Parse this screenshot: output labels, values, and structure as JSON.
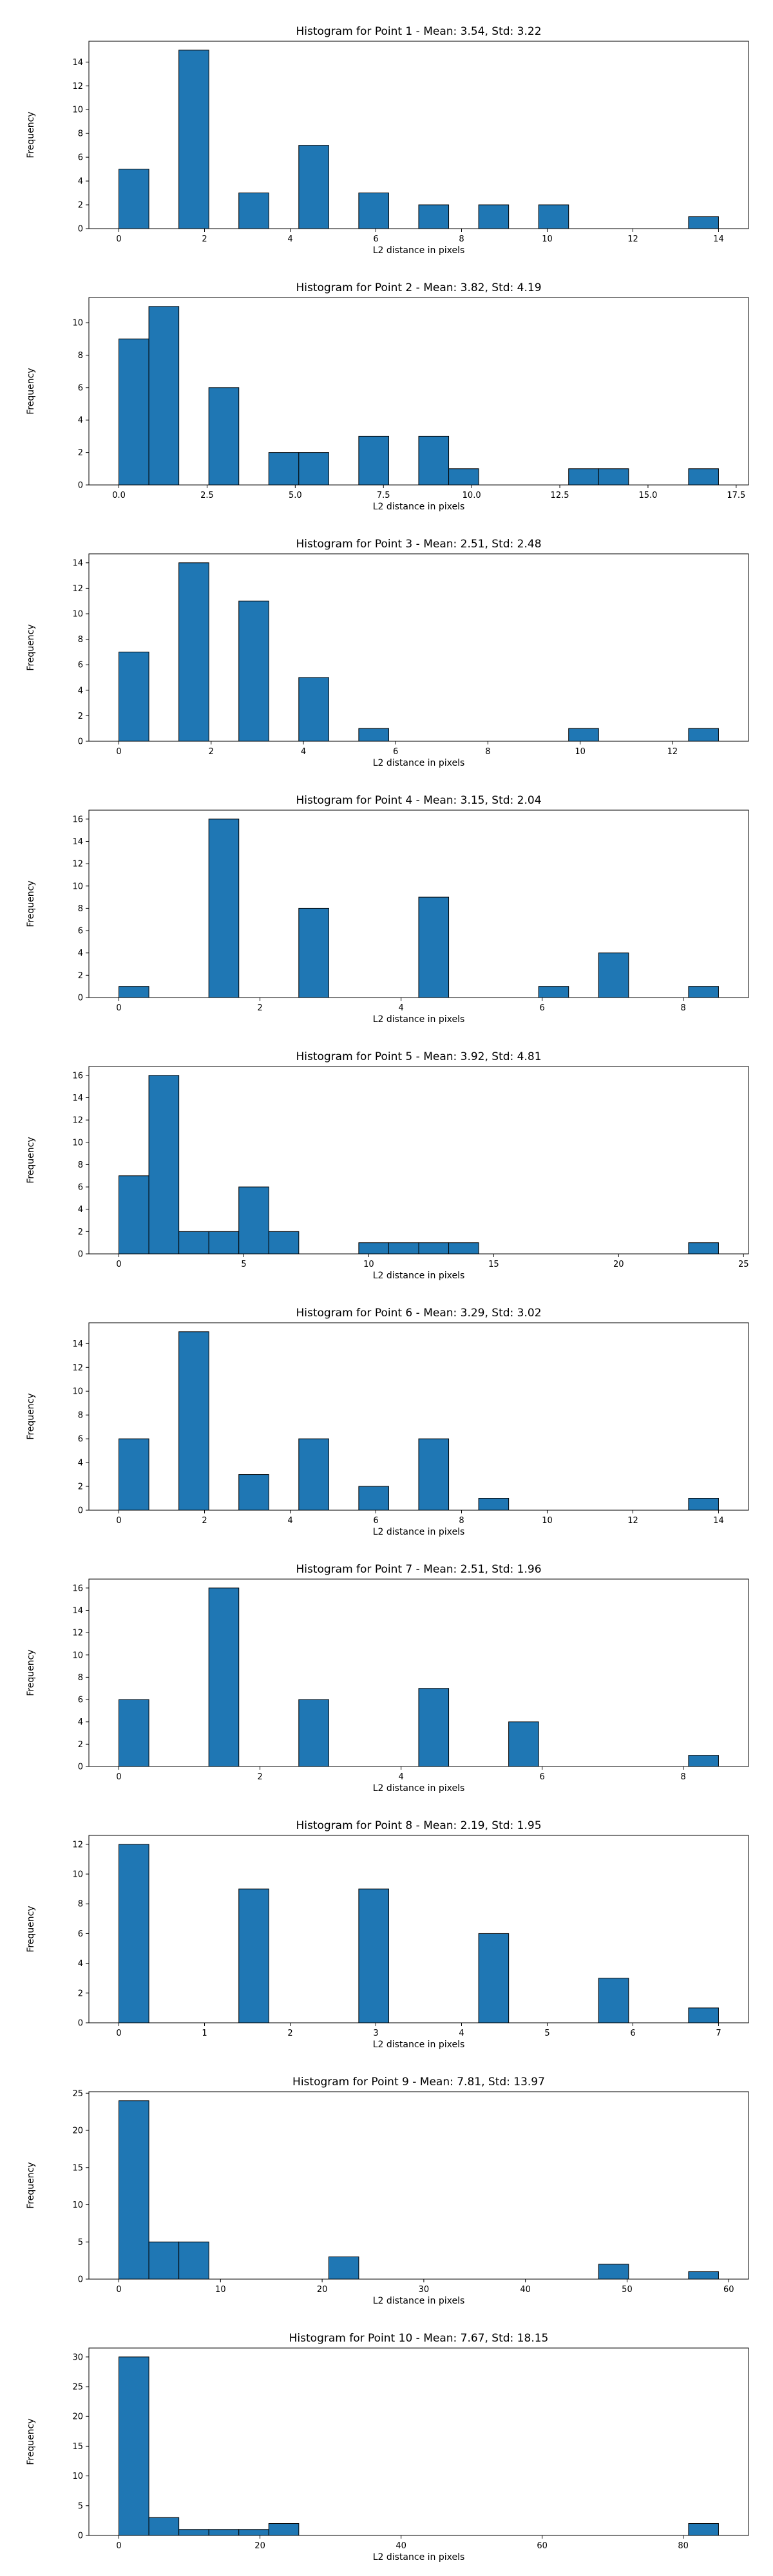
{
  "chart_data": [
    {
      "type": "bar",
      "title": "Histogram for Point 1 - Mean: 3.54, Std: 3.22",
      "xlabel": "L2 distance in pixels",
      "ylabel": "Frequency",
      "bar_color": "#1f77b4",
      "xlim": [
        -0.7,
        14.7
      ],
      "ylim": [
        0,
        15.75
      ],
      "xticks": [
        0,
        2,
        4,
        6,
        8,
        10,
        12,
        14
      ],
      "xtick_labels": [
        "0",
        "2",
        "4",
        "6",
        "8",
        "10",
        "12",
        "14"
      ],
      "yticks": [
        0,
        2,
        4,
        6,
        8,
        10,
        12,
        14
      ],
      "ytick_labels": [
        "0",
        "2",
        "4",
        "6",
        "8",
        "10",
        "12",
        "14"
      ],
      "bins": [
        0,
        0.7,
        1.4,
        2.1,
        2.8,
        3.5,
        4.2,
        4.9,
        5.6,
        6.3,
        7.0,
        7.7,
        8.4,
        9.1,
        9.8,
        10.5,
        11.2,
        11.9,
        12.6,
        13.3,
        14.0
      ],
      "counts": [
        5,
        0,
        15,
        0,
        3,
        0,
        7,
        0,
        3,
        0,
        2,
        0,
        2,
        0,
        2,
        0,
        0,
        0,
        0,
        1
      ]
    },
    {
      "type": "bar",
      "title": "Histogram for Point 2 - Mean: 3.82, Std: 4.19",
      "xlabel": "L2 distance in pixels",
      "ylabel": "Frequency",
      "bar_color": "#1f77b4",
      "xlim": [
        -0.85,
        17.85
      ],
      "ylim": [
        0,
        11.55
      ],
      "xticks": [
        0,
        2.5,
        5,
        7.5,
        10,
        12.5,
        15,
        17.5
      ],
      "xtick_labels": [
        "0.0",
        "2.5",
        "5.0",
        "7.5",
        "10.0",
        "12.5",
        "15.0",
        "17.5"
      ],
      "yticks": [
        0,
        2,
        4,
        6,
        8,
        10
      ],
      "ytick_labels": [
        "0",
        "2",
        "4",
        "6",
        "8",
        "10"
      ],
      "bins": [
        0,
        0.85,
        1.7,
        2.55,
        3.4,
        4.25,
        5.1,
        5.95,
        6.8,
        7.65,
        8.5,
        9.35,
        10.2,
        11.05,
        11.9,
        12.75,
        13.6,
        14.45,
        15.3,
        16.15,
        17.0
      ],
      "counts": [
        9,
        11,
        0,
        6,
        0,
        2,
        2,
        0,
        3,
        0,
        3,
        1,
        0,
        0,
        0,
        1,
        1,
        0,
        0,
        1
      ]
    },
    {
      "type": "bar",
      "title": "Histogram for Point 3 - Mean: 2.51, Std: 2.48",
      "xlabel": "L2 distance in pixels",
      "ylabel": "Frequency",
      "bar_color": "#1f77b4",
      "xlim": [
        -0.65,
        13.65
      ],
      "ylim": [
        0,
        14.7
      ],
      "xticks": [
        0,
        2,
        4,
        6,
        8,
        10,
        12
      ],
      "xtick_labels": [
        "0",
        "2",
        "4",
        "6",
        "8",
        "10",
        "12"
      ],
      "yticks": [
        0,
        2,
        4,
        6,
        8,
        10,
        12,
        14
      ],
      "ytick_labels": [
        "0",
        "2",
        "4",
        "6",
        "8",
        "10",
        "12",
        "14"
      ],
      "bins": [
        0,
        0.65,
        1.3,
        1.95,
        2.6,
        3.25,
        3.9,
        4.55,
        5.2,
        5.85,
        6.5,
        7.15,
        7.8,
        8.45,
        9.1,
        9.75,
        10.4,
        11.05,
        11.7,
        12.35,
        13.0
      ],
      "counts": [
        7,
        0,
        14,
        0,
        11,
        0,
        5,
        0,
        1,
        0,
        0,
        0,
        0,
        0,
        0,
        1,
        0,
        0,
        0,
        1
      ]
    },
    {
      "type": "bar",
      "title": "Histogram for Point 4 - Mean: 3.15, Std: 2.04",
      "xlabel": "L2 distance in pixels",
      "ylabel": "Frequency",
      "bar_color": "#1f77b4",
      "xlim": [
        -0.425,
        8.925
      ],
      "ylim": [
        0,
        16.8
      ],
      "xticks": [
        0,
        2,
        4,
        6,
        8
      ],
      "xtick_labels": [
        "0",
        "2",
        "4",
        "6",
        "8"
      ],
      "yticks": [
        0,
        2,
        4,
        6,
        8,
        10,
        12,
        14,
        16
      ],
      "ytick_labels": [
        "0",
        "2",
        "4",
        "6",
        "8",
        "10",
        "12",
        "14",
        "16"
      ],
      "bins": [
        0,
        0.425,
        0.85,
        1.275,
        1.7,
        2.125,
        2.55,
        2.975,
        3.4,
        3.825,
        4.25,
        4.675,
        5.1,
        5.525,
        5.95,
        6.375,
        6.8,
        7.225,
        7.65,
        8.075,
        8.5
      ],
      "counts": [
        1,
        0,
        0,
        16,
        0,
        0,
        8,
        0,
        0,
        0,
        9,
        0,
        0,
        0,
        1,
        0,
        4,
        0,
        0,
        1
      ]
    },
    {
      "type": "bar",
      "title": "Histogram for Point 5 - Mean: 3.92, Std: 4.81",
      "xlabel": "L2 distance in pixels",
      "ylabel": "Frequency",
      "bar_color": "#1f77b4",
      "xlim": [
        -1.2,
        25.2
      ],
      "ylim": [
        0,
        16.8
      ],
      "xticks": [
        0,
        5,
        10,
        15,
        20,
        25
      ],
      "xtick_labels": [
        "0",
        "5",
        "10",
        "15",
        "20",
        "25"
      ],
      "yticks": [
        0,
        2,
        4,
        6,
        8,
        10,
        12,
        14,
        16
      ],
      "ytick_labels": [
        "0",
        "2",
        "4",
        "6",
        "8",
        "10",
        "12",
        "14",
        "16"
      ],
      "bins": [
        0,
        1.2,
        2.4,
        3.6,
        4.8,
        6.0,
        7.2,
        8.4,
        9.6,
        10.8,
        12.0,
        13.2,
        14.4,
        15.6,
        16.8,
        18.0,
        19.2,
        20.4,
        21.6,
        22.8,
        24.0
      ],
      "counts": [
        7,
        16,
        2,
        2,
        6,
        2,
        0,
        0,
        1,
        1,
        1,
        1,
        0,
        0,
        0,
        0,
        0,
        0,
        0,
        1
      ]
    },
    {
      "type": "bar",
      "title": "Histogram for Point 6 - Mean: 3.29, Std: 3.02",
      "xlabel": "L2 distance in pixels",
      "ylabel": "Frequency",
      "bar_color": "#1f77b4",
      "xlim": [
        -0.7,
        14.7
      ],
      "ylim": [
        0,
        15.75
      ],
      "xticks": [
        0,
        2,
        4,
        6,
        8,
        10,
        12,
        14
      ],
      "xtick_labels": [
        "0",
        "2",
        "4",
        "6",
        "8",
        "10",
        "12",
        "14"
      ],
      "yticks": [
        0,
        2,
        4,
        6,
        8,
        10,
        12,
        14
      ],
      "ytick_labels": [
        "0",
        "2",
        "4",
        "6",
        "8",
        "10",
        "12",
        "14"
      ],
      "bins": [
        0,
        0.7,
        1.4,
        2.1,
        2.8,
        3.5,
        4.2,
        4.9,
        5.6,
        6.3,
        7.0,
        7.7,
        8.4,
        9.1,
        9.8,
        10.5,
        11.2,
        11.9,
        12.6,
        13.3,
        14.0
      ],
      "counts": [
        6,
        0,
        15,
        0,
        3,
        0,
        6,
        0,
        2,
        0,
        6,
        0,
        1,
        0,
        0,
        0,
        0,
        0,
        0,
        1
      ]
    },
    {
      "type": "bar",
      "title": "Histogram for Point 7 - Mean: 2.51, Std: 1.96",
      "xlabel": "L2 distance in pixels",
      "ylabel": "Frequency",
      "bar_color": "#1f77b4",
      "xlim": [
        -0.425,
        8.925
      ],
      "ylim": [
        0,
        16.8
      ],
      "xticks": [
        0,
        2,
        4,
        6,
        8
      ],
      "xtick_labels": [
        "0",
        "2",
        "4",
        "6",
        "8"
      ],
      "yticks": [
        0,
        2,
        4,
        6,
        8,
        10,
        12,
        14,
        16
      ],
      "ytick_labels": [
        "0",
        "2",
        "4",
        "6",
        "8",
        "10",
        "12",
        "14",
        "16"
      ],
      "bins": [
        0,
        0.425,
        0.85,
        1.275,
        1.7,
        2.125,
        2.55,
        2.975,
        3.4,
        3.825,
        4.25,
        4.675,
        5.1,
        5.525,
        5.95,
        6.375,
        6.8,
        7.225,
        7.65,
        8.075,
        8.5
      ],
      "counts": [
        6,
        0,
        0,
        16,
        0,
        0,
        6,
        0,
        0,
        0,
        7,
        0,
        0,
        4,
        0,
        0,
        0,
        0,
        0,
        1
      ]
    },
    {
      "type": "bar",
      "title": "Histogram for Point 8 - Mean: 2.19, Std: 1.95",
      "xlabel": "L2 distance in pixels",
      "ylabel": "Frequency",
      "bar_color": "#1f77b4",
      "xlim": [
        -0.35,
        7.35
      ],
      "ylim": [
        0,
        12.6
      ],
      "xticks": [
        0,
        1,
        2,
        3,
        4,
        5,
        6,
        7
      ],
      "xtick_labels": [
        "0",
        "1",
        "2",
        "3",
        "4",
        "5",
        "6",
        "7"
      ],
      "yticks": [
        0,
        2,
        4,
        6,
        8,
        10,
        12
      ],
      "ytick_labels": [
        "0",
        "2",
        "4",
        "6",
        "8",
        "10",
        "12"
      ],
      "bins": [
        0,
        0.35,
        0.7,
        1.05,
        1.4,
        1.75,
        2.1,
        2.45,
        2.8,
        3.15,
        3.5,
        3.85,
        4.2,
        4.55,
        4.9,
        5.25,
        5.6,
        5.95,
        6.3,
        6.65,
        7.0
      ],
      "counts": [
        12,
        0,
        0,
        0,
        9,
        0,
        0,
        0,
        9,
        0,
        0,
        0,
        6,
        0,
        0,
        0,
        3,
        0,
        0,
        1
      ]
    },
    {
      "type": "bar",
      "title": "Histogram for Point 9 - Mean: 7.81, Std: 13.97",
      "xlabel": "L2 distance in pixels",
      "ylabel": "Frequency",
      "bar_color": "#1f77b4",
      "xlim": [
        -2.95,
        61.95
      ],
      "ylim": [
        0,
        25.2
      ],
      "xticks": [
        0,
        10,
        20,
        30,
        40,
        50,
        60
      ],
      "xtick_labels": [
        "0",
        "10",
        "20",
        "30",
        "40",
        "50",
        "60"
      ],
      "yticks": [
        0,
        5,
        10,
        15,
        20,
        25
      ],
      "ytick_labels": [
        "0",
        "5",
        "10",
        "15",
        "20",
        "25"
      ],
      "bins": [
        0,
        2.95,
        5.9,
        8.85,
        11.8,
        14.75,
        17.7,
        20.65,
        23.6,
        26.55,
        29.5,
        32.45,
        35.4,
        38.35,
        41.3,
        44.25,
        47.2,
        50.15,
        53.1,
        56.05,
        59.0
      ],
      "counts": [
        24,
        5,
        5,
        0,
        0,
        0,
        0,
        3,
        0,
        0,
        0,
        0,
        0,
        0,
        0,
        0,
        2,
        0,
        0,
        1
      ]
    },
    {
      "type": "bar",
      "title": "Histogram for Point 10 - Mean: 7.67, Std: 18.15",
      "xlabel": "L2 distance in pixels",
      "ylabel": "Frequency",
      "bar_color": "#1f77b4",
      "xlim": [
        -4.25,
        89.25
      ],
      "ylim": [
        0,
        31.5
      ],
      "xticks": [
        0,
        20,
        40,
        60,
        80
      ],
      "xtick_labels": [
        "0",
        "20",
        "40",
        "60",
        "80"
      ],
      "yticks": [
        0,
        5,
        10,
        15,
        20,
        25,
        30
      ],
      "ytick_labels": [
        "0",
        "5",
        "10",
        "15",
        "20",
        "25",
        "30"
      ],
      "bins": [
        0,
        4.25,
        8.5,
        12.75,
        17.0,
        21.25,
        25.5,
        29.75,
        34.0,
        38.25,
        42.5,
        46.75,
        51.0,
        55.25,
        59.5,
        63.75,
        68.0,
        72.25,
        76.5,
        80.75,
        85.0
      ],
      "counts": [
        30,
        3,
        1,
        1,
        1,
        2,
        0,
        0,
        0,
        0,
        0,
        0,
        0,
        0,
        0,
        0,
        0,
        0,
        0,
        2
      ]
    }
  ]
}
